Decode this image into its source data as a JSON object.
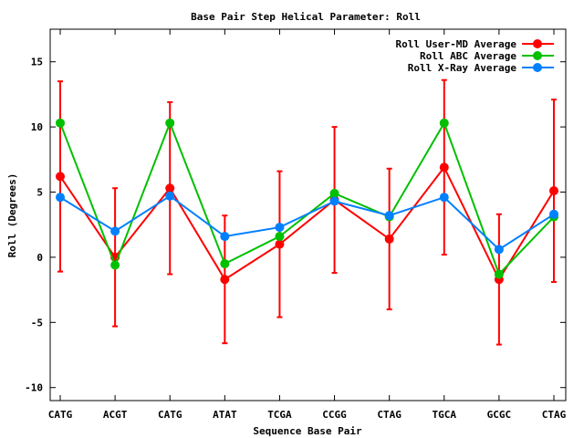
{
  "chart_data": {
    "type": "line",
    "title": "Base Pair Step Helical Parameter: Roll",
    "xlabel": "Sequence Base Pair",
    "ylabel": "Roll (Degrees)",
    "ylim": [
      -11,
      17.5
    ],
    "yticks": [
      -10,
      -5,
      0,
      5,
      10,
      15
    ],
    "categories": [
      "CATG",
      "ACGT",
      "CATG",
      "ATAT",
      "TCGA",
      "CCGG",
      "CTAG",
      "TGCA",
      "GCGC",
      "CTAG"
    ],
    "legend_position": "top-right",
    "series": [
      {
        "name": "Roll User-MD Average",
        "color": "#ff0000",
        "values": [
          6.2,
          0.0,
          5.3,
          -1.7,
          1.0,
          4.4,
          1.4,
          6.9,
          -1.7,
          5.1
        ],
        "error": [
          7.3,
          5.3,
          6.6,
          4.9,
          5.6,
          5.6,
          5.4,
          6.7,
          5.0,
          7.0
        ]
      },
      {
        "name": "Roll ABC Average",
        "color": "#00c000",
        "values": [
          10.3,
          -0.6,
          10.3,
          -0.5,
          1.6,
          4.9,
          3.1,
          10.3,
          -1.3,
          3.1
        ]
      },
      {
        "name": "Roll X-Ray Average",
        "color": "#0080ff",
        "values": [
          4.6,
          2.0,
          4.7,
          1.6,
          2.3,
          4.3,
          3.2,
          4.6,
          0.6,
          3.3
        ]
      }
    ]
  }
}
